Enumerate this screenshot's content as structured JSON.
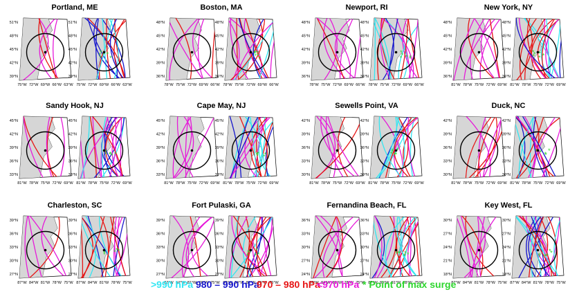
{
  "colors": {
    "gt990": "#33e6f2",
    "c980_990": "#1515cc",
    "c970_980": "#e61515",
    "lt970": "#e619d9",
    "max_surge": "#2ed62e",
    "land": "#d6d6d6",
    "ocean": "#ffffff",
    "circle": "#000000"
  },
  "legend": {
    "gt990": ">990 hPa",
    "c980_990": "980 – 990 hPa",
    "c970_980": "970 – 980 hPa",
    "lt970": "<970 hPa",
    "max_surge": "* Point of max surge"
  },
  "stations": [
    {
      "name": "Portland, ME",
      "left": {
        "lat": [
          "51°N",
          "48°N",
          "45°N",
          "42°N",
          "39°N"
        ],
        "lon": [
          "75°W",
          "72°W",
          "69°W",
          "66°W",
          "63°W"
        ]
      },
      "right": {
        "lat": [
          "51°N",
          "48°N",
          "45°N",
          "42°N",
          "39°N"
        ],
        "lon": [
          "75°W",
          "72°W",
          "69°W",
          "66°W",
          "63°W"
        ]
      }
    },
    {
      "name": "Boston, MA",
      "left": {
        "lat": [
          "48°N",
          "45°N",
          "42°N",
          "39°N",
          "36°N"
        ],
        "lon": [
          "78°W",
          "75°W",
          "72°W",
          "69°W",
          "66°W"
        ]
      },
      "right": {
        "lat": [
          "48°N",
          "45°N",
          "42°N",
          "39°N",
          "36°N"
        ],
        "lon": [
          "78°W",
          "75°W",
          "72°W",
          "69°W",
          "66°W"
        ]
      }
    },
    {
      "name": "Newport, RI",
      "left": {
        "lat": [
          "48°N",
          "45°N",
          "42°N",
          "39°N",
          "36°N"
        ],
        "lon": [
          "78°W",
          "75°W",
          "72°W",
          "69°W",
          "66°W"
        ]
      },
      "right": {
        "lat": [
          "48°N",
          "45°N",
          "42°N",
          "39°N",
          "36°N"
        ],
        "lon": [
          "78°W",
          "75°W",
          "72°W",
          "69°W",
          "66°W"
        ]
      }
    },
    {
      "name": "New York, NY",
      "left": {
        "lat": [
          "48°N",
          "45°N",
          "42°N",
          "39°N",
          "36°N"
        ],
        "lon": [
          "81°W",
          "78°W",
          "75°W",
          "72°W",
          "69°W"
        ]
      },
      "right": {
        "lat": [
          "48°N",
          "45°N",
          "42°N",
          "39°N",
          "36°N"
        ],
        "lon": [
          "81°W",
          "78°W",
          "75°W",
          "72°W",
          "69°W"
        ]
      }
    },
    {
      "name": "Sandy Hook, NJ",
      "left": {
        "lat": [
          "45°N",
          "42°N",
          "39°N",
          "36°N",
          "33°N"
        ],
        "lon": [
          "81°W",
          "78°W",
          "75°W",
          "72°W",
          "69°W"
        ]
      },
      "right": {
        "lat": [
          "45°N",
          "42°N",
          "39°N",
          "36°N",
          "33°N"
        ],
        "lon": [
          "81°W",
          "78°W",
          "75°W",
          "72°W",
          "69°W"
        ]
      }
    },
    {
      "name": "Cape May, NJ",
      "left": {
        "lat": [
          "45°N",
          "42°N",
          "39°N",
          "36°N",
          "33°N"
        ],
        "lon": [
          "81°W",
          "78°W",
          "75°W",
          "72°W",
          "69°W"
        ]
      },
      "right": {
        "lat": [
          "45°N",
          "42°N",
          "39°N",
          "36°N",
          "33°N"
        ],
        "lon": [
          "81°W",
          "78°W",
          "75°W",
          "72°W",
          "69°W"
        ]
      }
    },
    {
      "name": "Sewells Point, VA",
      "left": {
        "lat": [
          "42°N",
          "39°N",
          "36°N",
          "33°N",
          "30°N"
        ],
        "lon": [
          "81°W",
          "78°W",
          "75°W",
          "72°W",
          "69°W"
        ]
      },
      "right": {
        "lat": [
          "42°N",
          "39°N",
          "36°N",
          "33°N",
          "30°N"
        ],
        "lon": [
          "81°W",
          "78°W",
          "75°W",
          "72°W",
          "69°W"
        ]
      }
    },
    {
      "name": "Duck, NC",
      "left": {
        "lat": [
          "42°N",
          "39°N",
          "36°N",
          "33°N",
          "30°N"
        ],
        "lon": [
          "81°W",
          "78°W",
          "75°W",
          "72°W",
          "69°W"
        ]
      },
      "right": {
        "lat": [
          "42°N",
          "39°N",
          "36°N",
          "33°N",
          "30°N"
        ],
        "lon": [
          "81°W",
          "78°W",
          "75°W",
          "72°W",
          "69°W"
        ]
      }
    },
    {
      "name": "Charleston, SC",
      "left": {
        "lat": [
          "39°N",
          "36°N",
          "33°N",
          "30°N",
          "27°N"
        ],
        "lon": [
          "87°W",
          "84°W",
          "81°W",
          "78°W",
          "75°W"
        ]
      },
      "right": {
        "lat": [
          "39°N",
          "36°N",
          "33°N",
          "30°N",
          "27°N"
        ],
        "lon": [
          "87°W",
          "84°W",
          "81°W",
          "78°W",
          "75°W"
        ]
      }
    },
    {
      "name": "Fort Pulaski, GA",
      "left": {
        "lat": [
          "39°N",
          "36°N",
          "33°N",
          "30°N",
          "27°N"
        ],
        "lon": [
          "87°W",
          "84°W",
          "81°W",
          "78°W",
          "75°W"
        ]
      },
      "right": {
        "lat": [
          "39°N",
          "36°N",
          "33°N",
          "30°N",
          "27°N"
        ],
        "lon": [
          "87°W",
          "84°W",
          "81°W",
          "78°W",
          "75°W"
        ]
      }
    },
    {
      "name": "Fernandina Beach, FL",
      "left": {
        "lat": [
          "36°N",
          "33°N",
          "30°N",
          "27°N",
          "24°N"
        ],
        "lon": [
          "87°W",
          "84°W",
          "81°W",
          "78°W",
          "75°W"
        ]
      },
      "right": {
        "lat": [
          "36°N",
          "33°N",
          "30°N",
          "27°N",
          "24°N"
        ],
        "lon": [
          "87°W",
          "84°W",
          "81°W",
          "78°W",
          "75°W"
        ]
      }
    },
    {
      "name": "Key West, FL",
      "left": {
        "lat": [
          "30°N",
          "27°N",
          "24°N",
          "21°N",
          "18°N"
        ],
        "lon": [
          "87°W",
          "84°W",
          "81°W",
          "78°W",
          "75°W"
        ]
      },
      "right": {
        "lat": [
          "30°N",
          "27°N",
          "24°N",
          "21°N",
          "18°N"
        ],
        "lon": [
          "87°W",
          "84°W",
          "81°W",
          "78°W",
          "75°W"
        ]
      }
    }
  ]
}
